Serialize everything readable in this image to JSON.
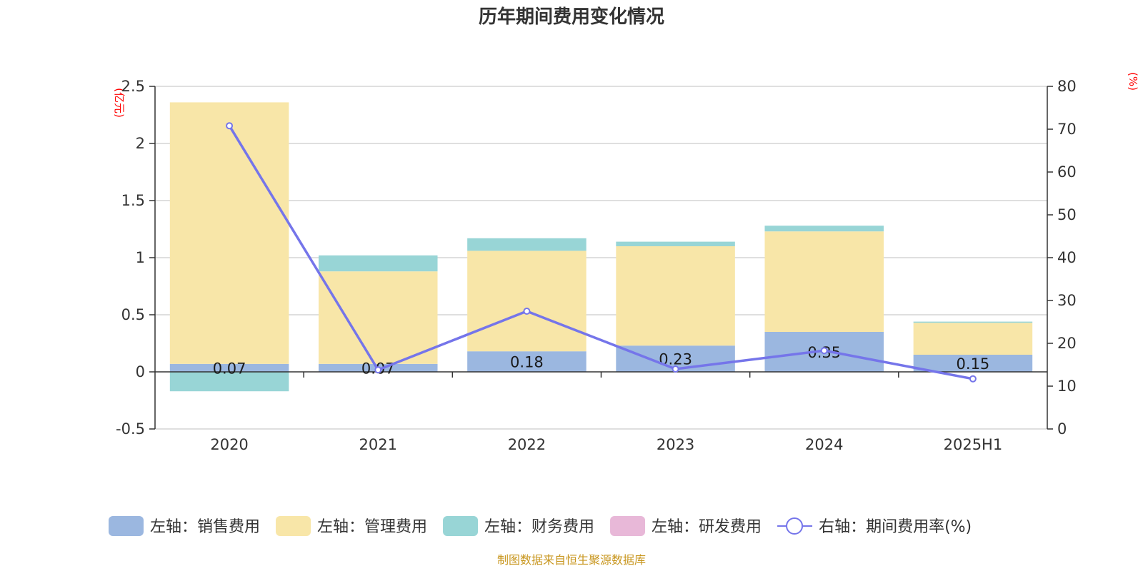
{
  "chart_data": {
    "type": "bar",
    "title": "历年期间费用变化情况",
    "categories": [
      "2020",
      "2021",
      "2022",
      "2023",
      "2024",
      "2025H1"
    ],
    "left_axis": {
      "unit": "(亿元)",
      "ylim": [
        -0.5,
        2.5
      ],
      "ticks": [
        "-0.5",
        "0",
        "0.5",
        "1",
        "1.5",
        "2",
        "2.5"
      ]
    },
    "right_axis": {
      "unit": "(%)",
      "ylim": [
        0,
        80
      ],
      "ticks": [
        "0",
        "10",
        "20",
        "30",
        "40",
        "50",
        "60",
        "70",
        "80"
      ]
    },
    "series": [
      {
        "name": "左轴：销售费用",
        "type": "bar",
        "axis": "left",
        "color": "#9bb7e0",
        "values": [
          0.07,
          0.07,
          0.18,
          0.23,
          0.35,
          0.15
        ],
        "labels": [
          "0.07",
          "0.07",
          "0.18",
          "0.23",
          "0.35",
          "0.15"
        ]
      },
      {
        "name": "左轴：管理费用",
        "type": "bar",
        "axis": "left",
        "color": "#f8e6a8",
        "values": [
          2.29,
          0.81,
          0.88,
          0.87,
          0.88,
          0.28
        ]
      },
      {
        "name": "左轴：财务费用",
        "type": "bar",
        "axis": "left",
        "color": "#98d5d6",
        "values": [
          -0.17,
          0.14,
          0.11,
          0.04,
          0.05,
          0.01
        ]
      },
      {
        "name": "左轴：研发费用",
        "type": "bar",
        "axis": "left",
        "color": "#e8b8d8",
        "values": [
          0,
          0,
          0,
          0,
          0,
          0
        ]
      },
      {
        "name": "右轴：期间费用率(%)",
        "type": "line",
        "axis": "right",
        "color": "#7575ea",
        "values": [
          70.8,
          13.8,
          27.5,
          14.0,
          18.3,
          11.7
        ]
      }
    ],
    "grid": true,
    "legend_position": "bottom"
  },
  "footer": {
    "source": "制图数据来自恒生聚源数据库"
  }
}
